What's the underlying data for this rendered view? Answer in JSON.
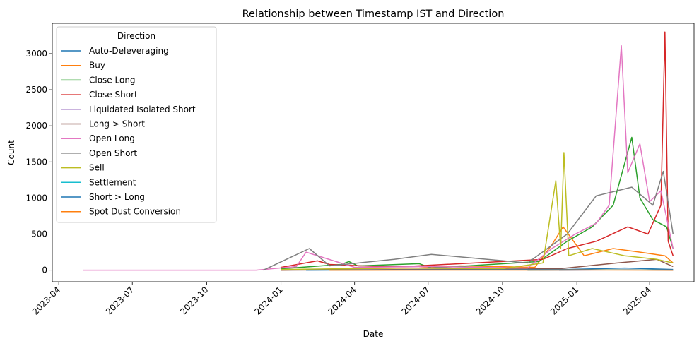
{
  "chart_data": {
    "type": "line",
    "title": "Relationship between Timestamp IST and Direction",
    "xlabel": "Date",
    "ylabel": "Count",
    "xlim": [
      "2023-03-24",
      "2025-05-26"
    ],
    "ylim": [
      -160,
      3420
    ],
    "x_ticks": [
      "2023-04",
      "2023-07",
      "2023-10",
      "2024-01",
      "2024-04",
      "2024-07",
      "2024-10",
      "2025-01",
      "2025-04"
    ],
    "y_ticks": [
      0,
      500,
      1000,
      1500,
      2000,
      2500,
      3000
    ],
    "legend_title": "Direction",
    "legend_position": "upper-left",
    "grid": false,
    "series": [
      {
        "name": "Auto-Deleveraging",
        "color": "#1f77b4",
        "points": [
          [
            "2024-12-10",
            0
          ],
          [
            "2025-01-20",
            3
          ],
          [
            "2025-03-05",
            5
          ],
          [
            "2025-04-20",
            2
          ],
          [
            "2025-04-30",
            0
          ]
        ]
      },
      {
        "name": "Buy",
        "color": "#ff7f0e",
        "points": [
          [
            "2024-01-01",
            0
          ],
          [
            "2024-03-15",
            20
          ],
          [
            "2024-06-20",
            30
          ],
          [
            "2024-08-10",
            60
          ],
          [
            "2024-11-10",
            40
          ],
          [
            "2024-12-01",
            350
          ],
          [
            "2024-12-15",
            600
          ],
          [
            "2025-01-10",
            200
          ],
          [
            "2025-02-15",
            300
          ],
          [
            "2025-03-20",
            250
          ],
          [
            "2025-04-20",
            200
          ],
          [
            "2025-04-30",
            100
          ]
        ]
      },
      {
        "name": "Close Long",
        "color": "#2ca02c",
        "points": [
          [
            "2024-01-01",
            20
          ],
          [
            "2024-03-15",
            80
          ],
          [
            "2024-03-25",
            120
          ],
          [
            "2024-04-05",
            60
          ],
          [
            "2024-06-20",
            90
          ],
          [
            "2024-07-05",
            30
          ],
          [
            "2024-11-15",
            120
          ],
          [
            "2024-12-20",
            400
          ],
          [
            "2025-01-20",
            600
          ],
          [
            "2025-02-15",
            900
          ],
          [
            "2025-03-10",
            1840
          ],
          [
            "2025-03-20",
            1000
          ],
          [
            "2025-04-05",
            700
          ],
          [
            "2025-04-22",
            600
          ],
          [
            "2025-04-30",
            300
          ]
        ]
      },
      {
        "name": "Close Short",
        "color": "#d62728",
        "points": [
          [
            "2024-01-01",
            40
          ],
          [
            "2024-02-15",
            130
          ],
          [
            "2024-03-01",
            80
          ],
          [
            "2024-04-10",
            60
          ],
          [
            "2024-06-01",
            50
          ],
          [
            "2024-11-20",
            150
          ],
          [
            "2024-12-20",
            300
          ],
          [
            "2025-01-25",
            400
          ],
          [
            "2025-03-05",
            600
          ],
          [
            "2025-03-30",
            500
          ],
          [
            "2025-04-15",
            900
          ],
          [
            "2025-04-20",
            3300
          ],
          [
            "2025-04-24",
            400
          ],
          [
            "2025-04-30",
            200
          ]
        ]
      },
      {
        "name": "Liquidated Isolated Short",
        "color": "#9467bd",
        "points": [
          [
            "2024-11-01",
            0
          ],
          [
            "2025-01-15",
            2
          ],
          [
            "2025-03-10",
            5
          ],
          [
            "2025-04-30",
            1
          ]
        ]
      },
      {
        "name": "Long > Short",
        "color": "#8c564b",
        "points": [
          [
            "2024-01-01",
            0
          ],
          [
            "2024-12-10",
            20
          ],
          [
            "2025-02-20",
            100
          ],
          [
            "2025-04-10",
            150
          ],
          [
            "2025-04-30",
            50
          ]
        ]
      },
      {
        "name": "Open Long",
        "color": "#e377c2",
        "points": [
          [
            "2023-05-01",
            0
          ],
          [
            "2023-12-01",
            0
          ],
          [
            "2024-01-20",
            50
          ],
          [
            "2024-02-01",
            250
          ],
          [
            "2024-04-01",
            40
          ],
          [
            "2024-07-01",
            50
          ],
          [
            "2024-11-01",
            30
          ],
          [
            "2024-12-01",
            300
          ],
          [
            "2024-12-30",
            500
          ],
          [
            "2025-01-25",
            650
          ],
          [
            "2025-02-10",
            900
          ],
          [
            "2025-02-25",
            3110
          ],
          [
            "2025-03-05",
            1350
          ],
          [
            "2025-03-20",
            1750
          ],
          [
            "2025-04-01",
            950
          ],
          [
            "2025-04-15",
            1100
          ],
          [
            "2025-04-30",
            300
          ]
        ]
      },
      {
        "name": "Open Short",
        "color": "#7f7f7f",
        "points": [
          [
            "2023-12-10",
            0
          ],
          [
            "2024-02-05",
            300
          ],
          [
            "2024-03-01",
            60
          ],
          [
            "2024-05-20",
            150
          ],
          [
            "2024-07-05",
            220
          ],
          [
            "2024-11-01",
            100
          ],
          [
            "2024-12-20",
            500
          ],
          [
            "2025-01-25",
            1030
          ],
          [
            "2025-03-10",
            1150
          ],
          [
            "2025-04-05",
            900
          ],
          [
            "2025-04-18",
            1370
          ],
          [
            "2025-04-30",
            500
          ]
        ]
      },
      {
        "name": "Sell",
        "color": "#bcbd22",
        "points": [
          [
            "2024-01-01",
            10
          ],
          [
            "2024-06-01",
            30
          ],
          [
            "2024-10-01",
            20
          ],
          [
            "2024-11-20",
            100
          ],
          [
            "2024-12-06",
            1240
          ],
          [
            "2024-12-12",
            300
          ],
          [
            "2024-12-16",
            1630
          ],
          [
            "2024-12-22",
            200
          ],
          [
            "2025-01-20",
            300
          ],
          [
            "2025-03-01",
            200
          ],
          [
            "2025-04-10",
            150
          ],
          [
            "2025-04-30",
            100
          ]
        ]
      },
      {
        "name": "Settlement",
        "color": "#17becf",
        "points": [
          [
            "2024-11-01",
            0
          ],
          [
            "2025-02-01",
            5
          ],
          [
            "2025-04-30",
            2
          ]
        ]
      },
      {
        "name": "Short > Long",
        "color": "#1f77b4",
        "points": [
          [
            "2024-02-01",
            0
          ],
          [
            "2024-12-20",
            10
          ],
          [
            "2025-03-01",
            30
          ],
          [
            "2025-04-30",
            10
          ]
        ]
      },
      {
        "name": "Spot Dust Conversion",
        "color": "#ff7f0e",
        "points": [
          [
            "2024-03-01",
            0
          ],
          [
            "2024-09-01",
            1
          ],
          [
            "2025-01-01",
            2
          ],
          [
            "2025-04-30",
            0
          ]
        ]
      }
    ]
  }
}
